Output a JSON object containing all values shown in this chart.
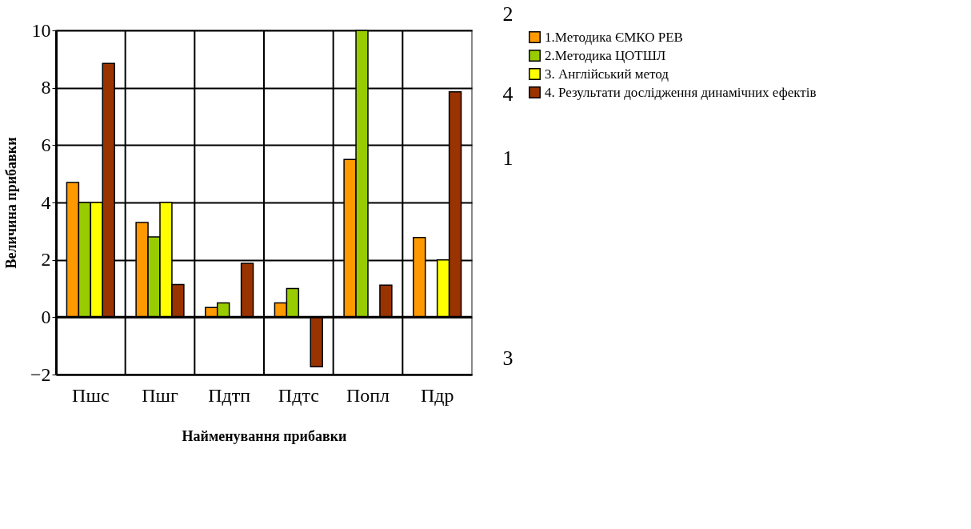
{
  "chart_data": {
    "type": "bar",
    "xlabel": "Найменування прибавки",
    "ylabel": "Величина прибавки",
    "categories": [
      "Пшс",
      "Пшг",
      "Пдтп",
      "Пдтс",
      "Попл",
      "Пдр"
    ],
    "series": [
      {
        "name": "1.Методика ЄМКО РЕВ",
        "color": "#ff9900",
        "values": [
          4.7,
          3.3,
          0.34,
          0.5,
          5.5,
          2.78
        ]
      },
      {
        "name": "2.Методика ЦОТШЛ",
        "color": "#99cc00",
        "values": [
          4,
          2.8,
          0.5,
          1.0,
          10,
          null
        ]
      },
      {
        "name": "3. Англійський метод",
        "color": "#ffff00",
        "values": [
          4,
          4,
          null,
          null,
          null,
          2
        ]
      },
      {
        "name": "4. Результати дослідження динамічних ефектів",
        "color": "#993300",
        "values": [
          8.85,
          1.14,
          1.88,
          -1.73,
          1.12,
          7.86
        ]
      }
    ],
    "ylim": [
      -2,
      10
    ],
    "yticks": [
      -2,
      0,
      2,
      4,
      6,
      8,
      10
    ],
    "grid": true,
    "legend": "right",
    "annotations": [
      "2",
      "4",
      "1",
      "3"
    ]
  }
}
